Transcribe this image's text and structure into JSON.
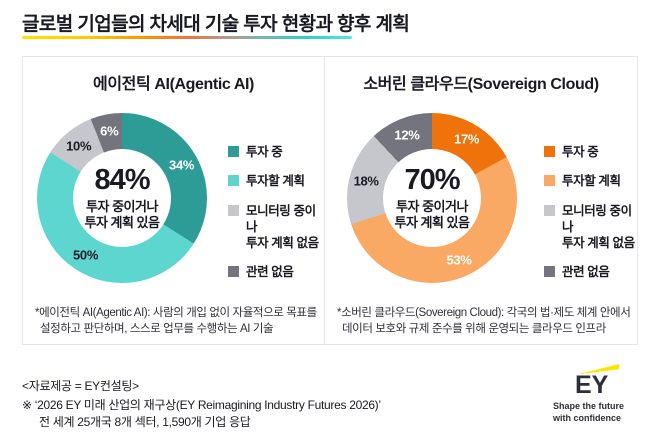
{
  "header": {
    "title": "글로벌 기업들의 차세대 기술 투자 현황과 향후 계획"
  },
  "chart_data": [
    {
      "type": "pie",
      "variant": "donut",
      "title": "에이전틱 AI(Agentic AI)",
      "categories": [
        "투자 중",
        "투자할 계획",
        "모니터링 중이나\n투자 계획 없음",
        "관련 없음"
      ],
      "values": [
        34,
        50,
        10,
        6
      ],
      "unit": "%",
      "colors": [
        "#2d9c97",
        "#5dd6d0",
        "#c6c6cd",
        "#74747e"
      ],
      "label_colors": [
        "#ffffff",
        "#1a1a24",
        "#1a1a24",
        "#ffffff"
      ],
      "legend_position": "right",
      "center_value": "84%",
      "center_caption": "투자 중이거나\n투자 계획 있음",
      "footnote1": "*에이전틱 AI(Agentic AI): 사람의 개입 없이 자율적으로 목표를",
      "footnote2": "설정하고 판단하며, 스스로 업무를 수행하는 AI 기술"
    },
    {
      "type": "pie",
      "variant": "donut",
      "title": "소버린 클라우드(Sovereign Cloud)",
      "categories": [
        "투자 중",
        "투자할 계획",
        "모니터링 중이나\n투자 계획 없음",
        "관련 없음"
      ],
      "values": [
        17,
        53,
        18,
        12
      ],
      "unit": "%",
      "colors": [
        "#f0720a",
        "#f9a963",
        "#c6c6cd",
        "#74747e"
      ],
      "label_colors": [
        "#ffffff",
        "#ffffff",
        "#1a1a24",
        "#ffffff"
      ],
      "legend_position": "right",
      "center_value": "70%",
      "center_caption": "투자 중이거나\n투자 계획 있음",
      "footnote1": "*소버린 클라우드(Sovereign Cloud): 각국의 법·제도 체계 안에서",
      "footnote2": "데이터 보호와 규제 준수를 위해 운영되는 클라우드 인프라"
    }
  ],
  "footer": {
    "source": "<자료제공 = EY컨설팅>",
    "note_line1": "※ ‘2026 EY 미래 산업의 재구상(EY Reimagining Industry Futures 2026)’",
    "note_line2": "전 세계 25개국 8개 섹터, 1,590개 기업 응답",
    "logo": {
      "text": "EY",
      "tagline_line1": "Shape the future",
      "tagline_line2": "with confidence",
      "beam_color": "#ffe600",
      "text_color": "#2e2e38"
    }
  }
}
